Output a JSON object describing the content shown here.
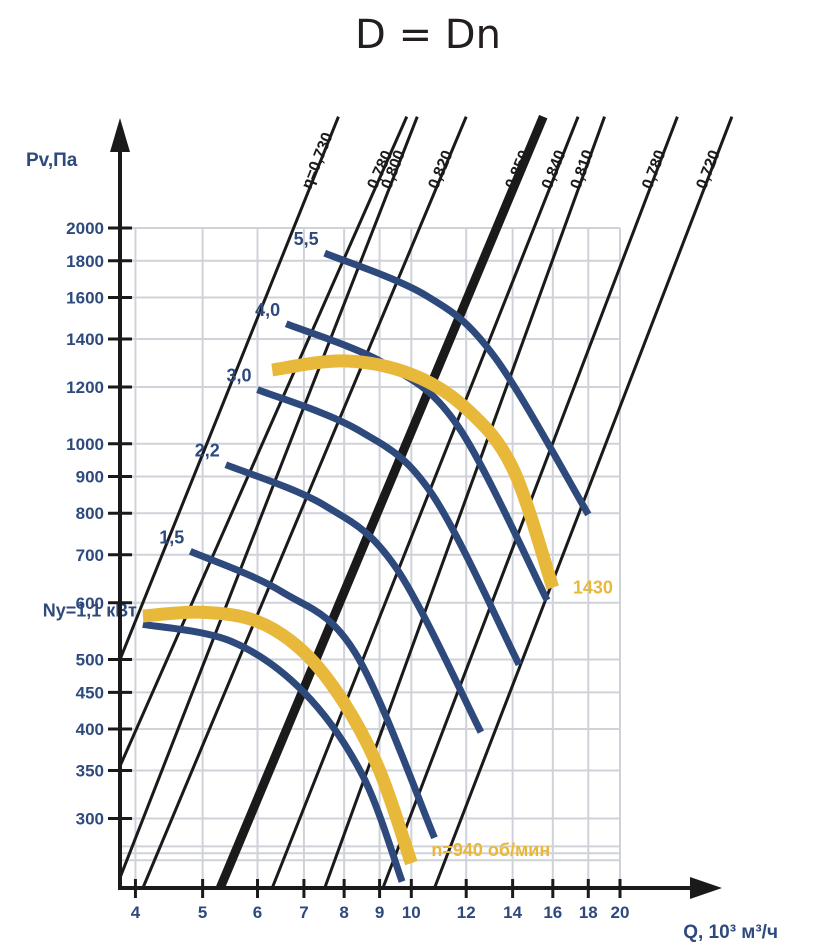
{
  "chart_data": {
    "type": "line",
    "title": "D = Dn",
    "ylabel": "Pv,Па",
    "xlabel": "Q, 10³ м³/ч",
    "xscale": "log",
    "yscale": "log",
    "xlim": [
      3.8,
      20
    ],
    "ylim": [
      240,
      2000
    ],
    "x_ticks": [
      "4",
      "5",
      "6",
      "7",
      "8",
      "9",
      "10",
      "12",
      "14",
      "16",
      "18",
      "20"
    ],
    "y_ticks": [
      "300",
      "350",
      "400",
      "450",
      "500",
      "600",
      "700",
      "800",
      "900",
      "1000",
      "1200",
      "1400",
      "1600",
      "1800",
      "2000"
    ],
    "grid": true,
    "efficiency_lines": [
      {
        "label": "η=0,730",
        "bold": false,
        "x": [
          3.8,
          7.85
        ],
        "y": [
          500,
          2860
        ]
      },
      {
        "label": "0,780",
        "bold": false,
        "x": [
          3.8,
          9.85
        ],
        "y": [
          355,
          2860
        ]
      },
      {
        "label": "0,800",
        "bold": false,
        "x": [
          3.8,
          10.2
        ],
        "y": [
          248,
          2860
        ]
      },
      {
        "label": "0,820",
        "bold": false,
        "x": [
          4.1,
          12.0
        ],
        "y": [
          240,
          2860
        ]
      },
      {
        "label": "0,850",
        "bold": true,
        "x": [
          5.3,
          15.5
        ],
        "y": [
          240,
          2860
        ]
      },
      {
        "label": "0,840",
        "bold": false,
        "x": [
          6.3,
          17.4
        ],
        "y": [
          240,
          2860
        ]
      },
      {
        "label": "0,810",
        "bold": false,
        "x": [
          7.5,
          19.0
        ],
        "y": [
          240,
          2860
        ]
      },
      {
        "label": "0,780",
        "bold": false,
        "x": [
          9.1,
          24.2
        ],
        "y": [
          240,
          2860
        ]
      },
      {
        "label": "0,720",
        "bold": false,
        "x": [
          10.8,
          29.0
        ],
        "y": [
          240,
          2860
        ]
      }
    ],
    "power_curves": [
      {
        "label": "Ny=1,1 кВт",
        "x": [
          4.1,
          5.5,
          7.0,
          8.5,
          9.7
        ],
        "y": [
          560,
          530,
          450,
          345,
          245
        ]
      },
      {
        "label": "1,5",
        "x": [
          4.8,
          6.5,
          8.3,
          10.8
        ],
        "y": [
          708,
          622,
          511,
          282
        ]
      },
      {
        "label": "2,2",
        "x": [
          5.4,
          7.5,
          9.5,
          12.6
        ],
        "y": [
          935,
          820,
          672,
          396
        ]
      },
      {
        "label": "3,0",
        "x": [
          6.0,
          8.4,
          10.7,
          14.3
        ],
        "y": [
          1190,
          1044,
          852,
          492
        ]
      },
      {
        "label": "4,0",
        "x": [
          6.6,
          9.2,
          11.7,
          15.7
        ],
        "y": [
          1470,
          1290,
          1055,
          605
        ]
      },
      {
        "label": "5,5",
        "x": [
          7.5,
          10.5,
          13.2,
          18.0
        ],
        "y": [
          1845,
          1610,
          1320,
          797
        ]
      }
    ],
    "speed_curves": [
      {
        "label": "n=940 об/мин",
        "color": "#e8b83a",
        "x": [
          4.1,
          5.0,
          6.0,
          7.0,
          8.0,
          9.0,
          10.0
        ],
        "y": [
          575,
          582,
          565,
          512,
          435,
          350,
          260
        ]
      },
      {
        "label": "1430",
        "color": "#e8b83a",
        "x": [
          6.3,
          8.0,
          10.0,
          12.0,
          14.0,
          16.0
        ],
        "y": [
          1268,
          1305,
          1250,
          1120,
          925,
          630
        ]
      }
    ],
    "colors": {
      "power": "#2e4a7d",
      "speed": "#e8b83a",
      "efficiency": "#1a1a1a",
      "grid": "#cfd2d8",
      "text": "#2e4a7d"
    }
  }
}
